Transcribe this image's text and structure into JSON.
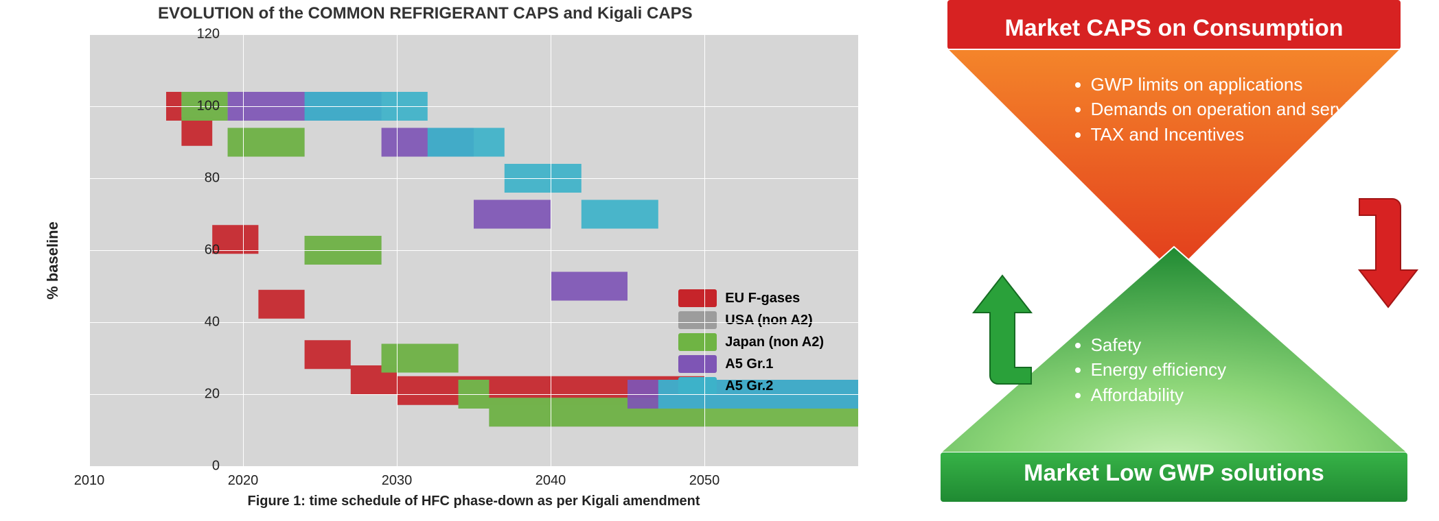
{
  "chart": {
    "title": "EVOLUTION of the COMMON REFRIGERANT CAPS and Kigali CAPS",
    "type": "step-band",
    "background_color": "#d6d6d6",
    "gridline_color": "#ffffff",
    "xlim": [
      2010,
      2060
    ],
    "ylim": [
      0,
      120
    ],
    "xticks": [
      2010,
      2020,
      2030,
      2040,
      2050
    ],
    "xtick_labels": [
      "2010",
      "2020",
      "2030",
      "2040",
      "2050"
    ],
    "yticks": [
      0,
      20,
      40,
      60,
      80,
      100,
      120
    ],
    "ytick_labels": [
      "0",
      "20",
      "40",
      "60",
      "80",
      "100",
      "120"
    ],
    "xlabel": "Figure 1: time schedule of HFC phase-down as per Kigali amendment",
    "ylabel": "% baseline",
    "label_fontsize": 22,
    "tick_fontsize": 20,
    "band_halfwidth_pct": 4,
    "series": [
      {
        "name": "EU F-gases",
        "color": "#c6242a",
        "steps": [
          {
            "x": 2015,
            "y": 100
          },
          {
            "x": 2016,
            "y": 93
          },
          {
            "x": 2018,
            "y": 63
          },
          {
            "x": 2021,
            "y": 45
          },
          {
            "x": 2024,
            "y": 31
          },
          {
            "x": 2027,
            "y": 24
          },
          {
            "x": 2030,
            "y": 21
          },
          {
            "x": 2050,
            "y": 21
          }
        ]
      },
      {
        "name": "USA (non A2)",
        "color": "#9c9c9c",
        "steps": [
          {
            "x": 2016,
            "y": 100
          },
          {
            "x": 2019,
            "y": 90
          },
          {
            "x": 2024,
            "y": 60
          },
          {
            "x": 2029,
            "y": 30
          },
          {
            "x": 2034,
            "y": 20
          },
          {
            "x": 2036,
            "y": 15
          },
          {
            "x": 2050,
            "y": 15
          }
        ]
      },
      {
        "name": "Japan (non A2)",
        "color": "#6fb444",
        "steps": [
          {
            "x": 2016,
            "y": 100
          },
          {
            "x": 2019,
            "y": 90
          },
          {
            "x": 2024,
            "y": 60
          },
          {
            "x": 2029,
            "y": 30
          },
          {
            "x": 2034,
            "y": 20
          },
          {
            "x": 2036,
            "y": 15
          },
          {
            "x": 2060,
            "y": 15
          }
        ]
      },
      {
        "name": "A5 Gr.1",
        "color": "#7e55b5",
        "steps": [
          {
            "x": 2019,
            "y": 100
          },
          {
            "x": 2024,
            "y": 100
          },
          {
            "x": 2029,
            "y": 90
          },
          {
            "x": 2035,
            "y": 70
          },
          {
            "x": 2040,
            "y": 50
          },
          {
            "x": 2045,
            "y": 20
          },
          {
            "x": 2060,
            "y": 20
          }
        ]
      },
      {
        "name": "A5 Gr.2",
        "color": "#3db2c9",
        "steps": [
          {
            "x": 2024,
            "y": 100
          },
          {
            "x": 2028,
            "y": 100
          },
          {
            "x": 2032,
            "y": 90
          },
          {
            "x": 2037,
            "y": 80
          },
          {
            "x": 2042,
            "y": 70
          },
          {
            "x": 2047,
            "y": 20
          },
          {
            "x": 2060,
            "y": 20
          }
        ]
      }
    ]
  },
  "infographic": {
    "top_title": "Market CAPS on Consumption",
    "bottom_title": "Market Low GWP solutions",
    "top_bullets": [
      "GWP limits on applications",
      "Demands on operation and service",
      "TAX and Incentives"
    ],
    "bottom_bullets": [
      "Safety",
      "Energy efficiency",
      "Affordability"
    ],
    "bullet_fontsize": 26,
    "colors": {
      "top_bar": "#d72222",
      "top_triangle_top": "#f4852a",
      "top_triangle_bottom": "#e23c1c",
      "bottom_triangle_top": "#1f8a32",
      "bottom_triangle_bottom": "#8fd77a",
      "bottom_bar": "#2aa13a",
      "outline": "#ffffff",
      "title_color": "#ffffff",
      "bullet_color": "#ffffff",
      "arrow_red": "#d72222",
      "arrow_green": "#2aa13a"
    }
  }
}
